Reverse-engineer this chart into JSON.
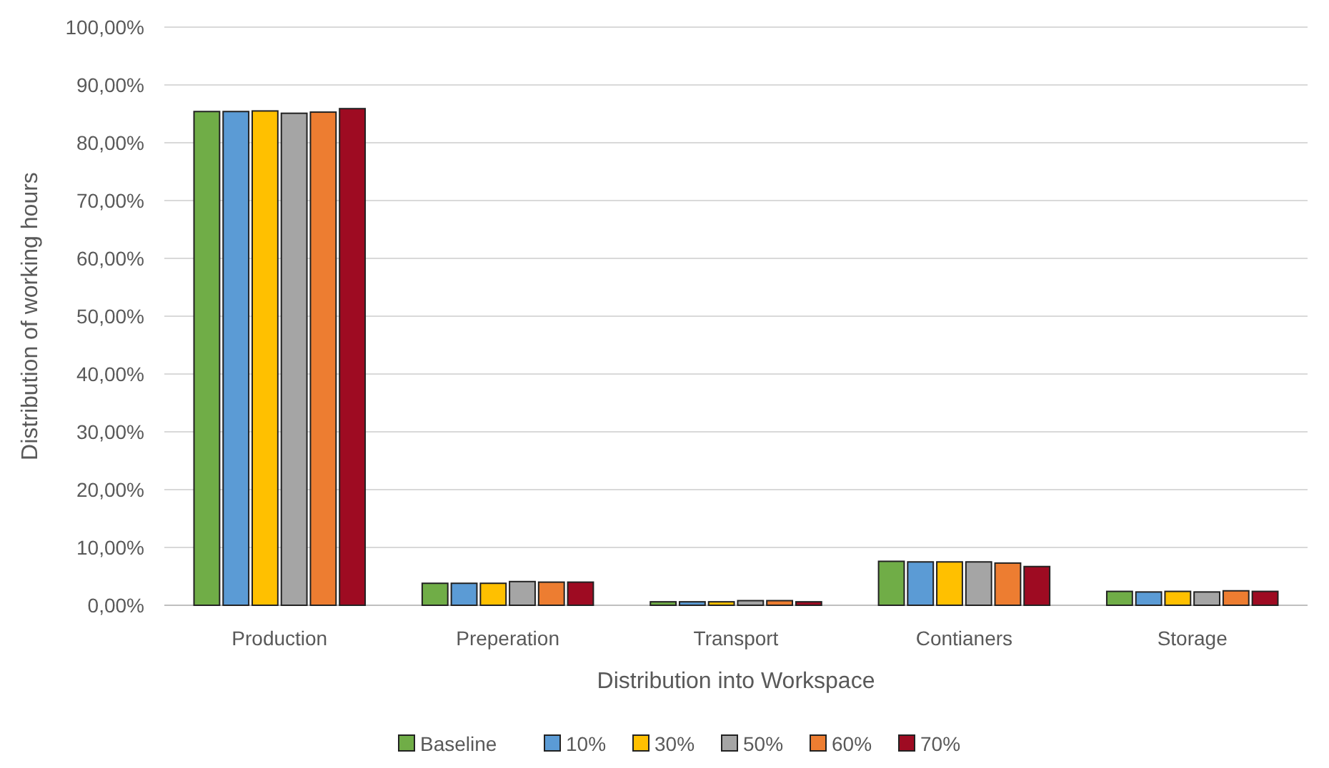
{
  "chart_data": {
    "type": "bar",
    "xlabel": "Distribution into Workspace",
    "ylabel": "Distribution of working hours",
    "categories": [
      "Production",
      "Preperation",
      "Transport",
      "Contianers",
      "Storage"
    ],
    "series": [
      {
        "name": "Baseline",
        "color": "#70ad47",
        "values": [
          85.4,
          3.8,
          0.6,
          7.6,
          2.4
        ]
      },
      {
        "name": "10%",
        "color": "#5b9bd5",
        "values": [
          85.4,
          3.8,
          0.6,
          7.5,
          2.3
        ]
      },
      {
        "name": "30%",
        "color": "#ffc000",
        "values": [
          85.5,
          3.8,
          0.6,
          7.5,
          2.4
        ]
      },
      {
        "name": "50%",
        "color": "#a5a5a5",
        "values": [
          85.1,
          4.1,
          0.8,
          7.5,
          2.3
        ]
      },
      {
        "name": "60%",
        "color": "#ed7d31",
        "values": [
          85.3,
          4.0,
          0.8,
          7.3,
          2.5
        ]
      },
      {
        "name": "70%",
        "color": "#9e0b22",
        "values": [
          85.9,
          4.0,
          0.6,
          6.7,
          2.4
        ]
      }
    ],
    "ylim": [
      0,
      100
    ],
    "yticks": [
      {
        "value": 0,
        "label": "0,00%"
      },
      {
        "value": 10,
        "label": "10,00%"
      },
      {
        "value": 20,
        "label": "20,00%"
      },
      {
        "value": 30,
        "label": "30,00%"
      },
      {
        "value": 40,
        "label": "40,00%"
      },
      {
        "value": 50,
        "label": "50,00%"
      },
      {
        "value": 60,
        "label": "60,00%"
      },
      {
        "value": 70,
        "label": "70,00%"
      },
      {
        "value": 80,
        "label": "80,00%"
      },
      {
        "value": 90,
        "label": "90,00%"
      },
      {
        "value": 100,
        "label": "100,00%"
      }
    ],
    "grid": "y",
    "legend": "bottom"
  }
}
